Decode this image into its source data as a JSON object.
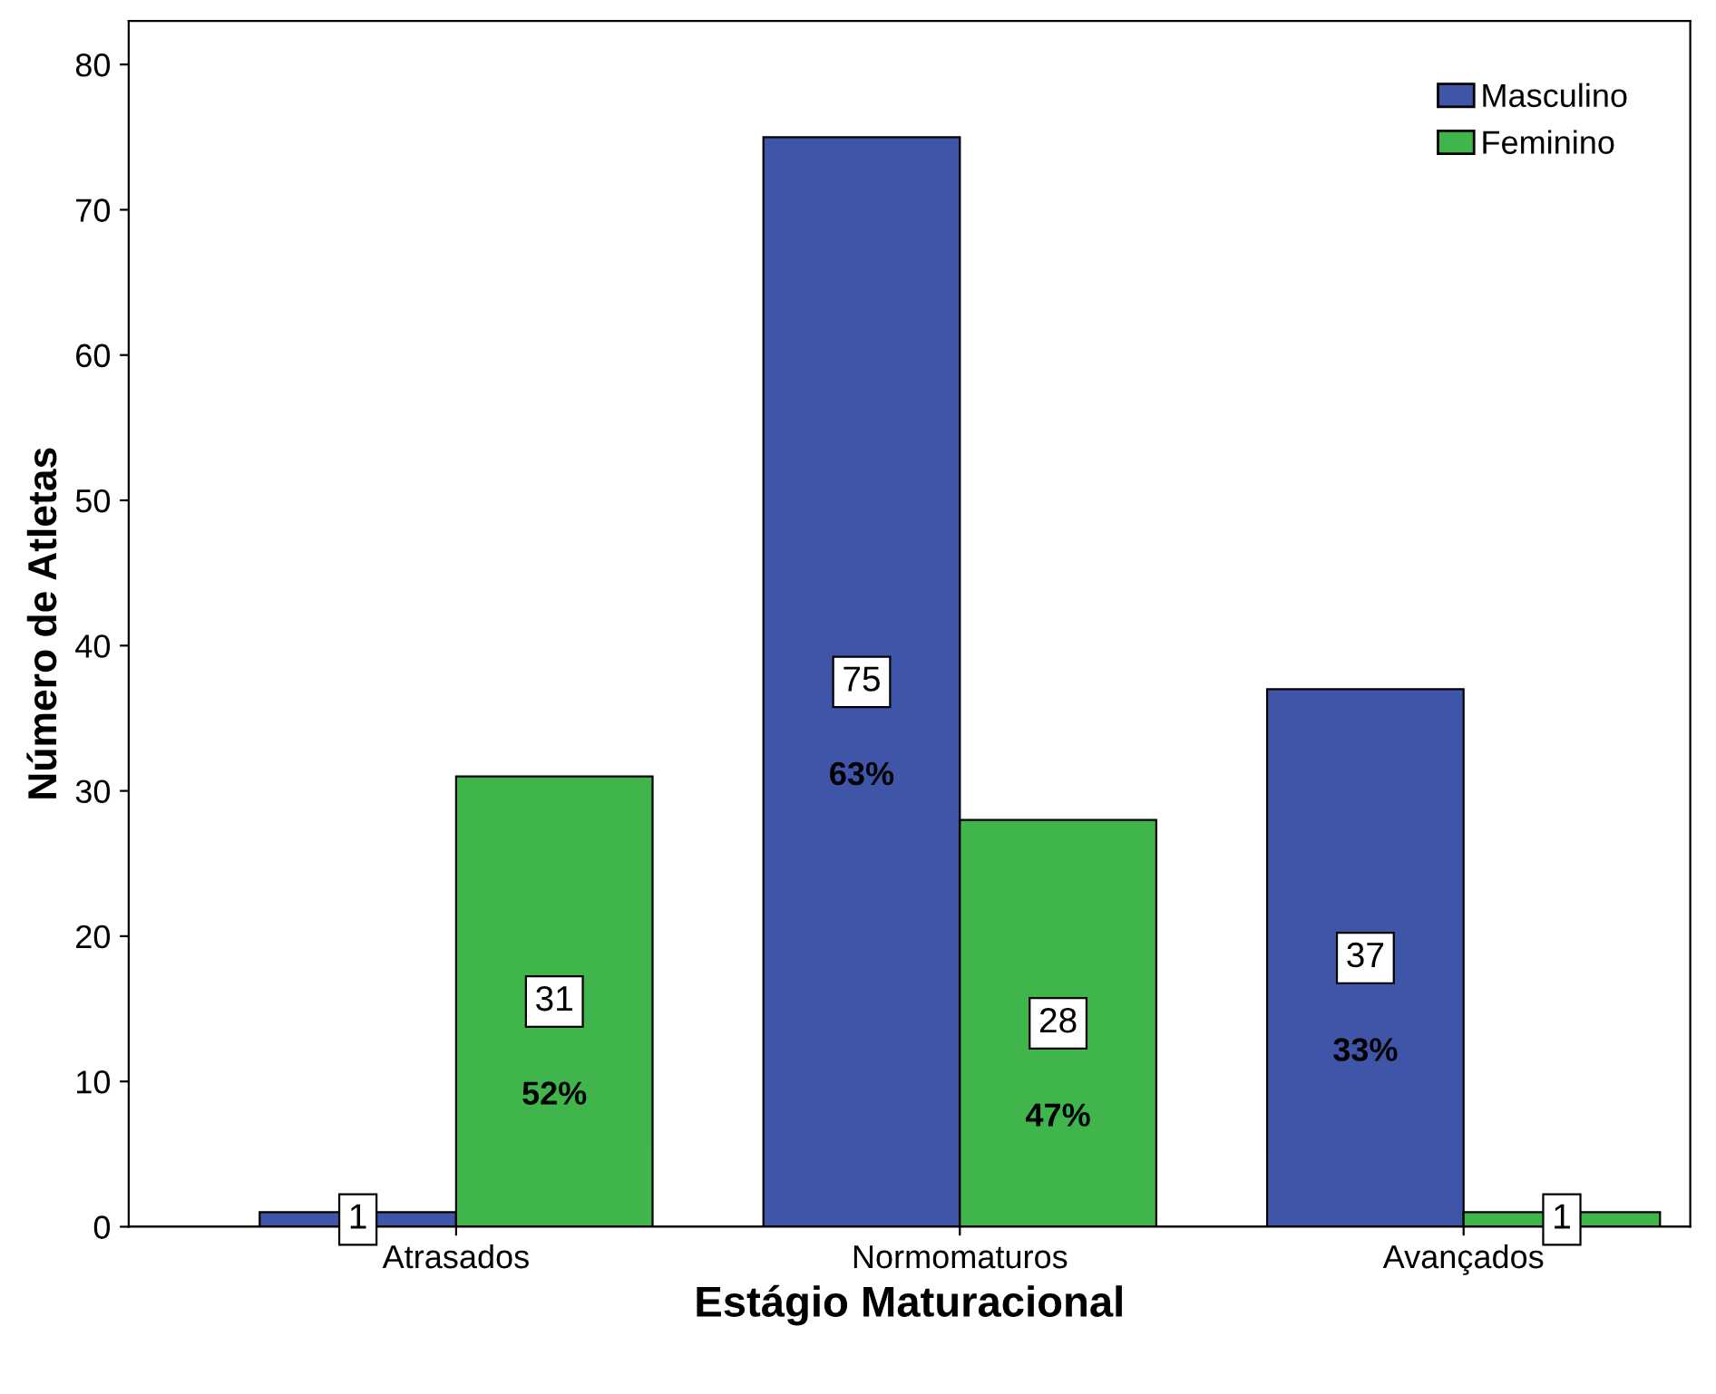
{
  "chart_data": {
    "type": "bar",
    "xlabel": "Estágio Maturacional",
    "ylabel": "Número de Atletas",
    "categories": [
      "Atrasados",
      "Normomaturos",
      "Avançados"
    ],
    "series": [
      {
        "name": "Masculino",
        "color": "#3f56a8",
        "values": [
          1,
          75,
          37
        ],
        "value_labels": [
          "1",
          "75\n63%",
          "37\n33%"
        ]
      },
      {
        "name": "Feminino",
        "color": "#40b54b",
        "values": [
          31,
          28,
          1
        ],
        "value_labels": [
          "31\n52%",
          "28\n47%",
          "1"
        ]
      }
    ],
    "ylim": [
      0,
      83
    ],
    "yticks": [
      0,
      10,
      20,
      30,
      40,
      50,
      60,
      70,
      80
    ],
    "grid": false,
    "legend": "top right"
  }
}
